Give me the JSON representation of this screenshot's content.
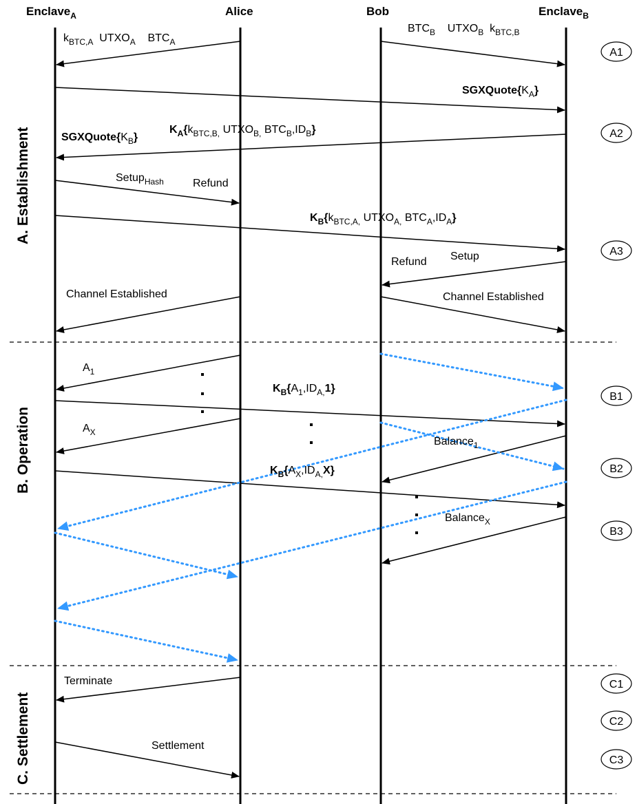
{
  "participants": [
    {
      "id": "ea",
      "name": "Enclave",
      "sub": "A"
    },
    {
      "id": "alice",
      "name": "Alice",
      "sub": ""
    },
    {
      "id": "bob",
      "name": "Bob",
      "sub": ""
    },
    {
      "id": "eb",
      "name": "Enclave",
      "sub": "B"
    }
  ],
  "sections": [
    {
      "id": "A",
      "label": "A. Establishment"
    },
    {
      "id": "B",
      "label": "B. Operation"
    },
    {
      "id": "C",
      "label": "C. Settlement"
    }
  ],
  "steps": [
    "A1",
    "A2",
    "A3",
    "B1",
    "B2",
    "B3",
    "C1",
    "C2",
    "C3"
  ],
  "messages": {
    "a1_left": [
      [
        "k",
        ""
      ],
      [
        "BTC,A",
        "sub"
      ],
      [
        "  UTXO",
        ""
      ],
      [
        "A",
        "sub"
      ],
      [
        "    BTC",
        ""
      ],
      [
        "A",
        "sub"
      ]
    ],
    "a1_right": [
      [
        "BTC",
        ""
      ],
      [
        "B",
        "sub"
      ],
      [
        "    UTXO",
        ""
      ],
      [
        "B",
        "sub"
      ],
      [
        "  k",
        ""
      ],
      [
        "BTC,B",
        "sub"
      ]
    ],
    "quote_a": [
      [
        "SGXQuote{",
        "b"
      ],
      [
        "K",
        ""
      ],
      [
        "A",
        "sub"
      ],
      [
        "}",
        "b"
      ]
    ],
    "quote_b": [
      [
        "SGXQuote{",
        "b"
      ],
      [
        "K",
        ""
      ],
      [
        "B",
        "sub"
      ],
      [
        "}",
        "b"
      ]
    ],
    "ka_msg": [
      [
        "K",
        "b"
      ],
      [
        "A",
        "bsub"
      ],
      [
        "{",
        "b"
      ],
      [
        "k",
        ""
      ],
      [
        "BTC,B,",
        "sub"
      ],
      [
        " UTXO",
        ""
      ],
      [
        "B,",
        "sub"
      ],
      [
        " BTC",
        ""
      ],
      [
        "B",
        "sub"
      ],
      [
        ",ID",
        ""
      ],
      [
        "B",
        "sub"
      ],
      [
        "}",
        "b"
      ]
    ],
    "setup_hash": [
      [
        "Setup",
        ""
      ],
      [
        "Hash",
        "sub"
      ]
    ],
    "refund_a": [
      [
        "Refund",
        ""
      ]
    ],
    "kb_msg": [
      [
        "K",
        "b"
      ],
      [
        "B",
        "bsub"
      ],
      [
        "{",
        "b"
      ],
      [
        "k",
        ""
      ],
      [
        "BTC,A,",
        "sub"
      ],
      [
        " UTXO",
        ""
      ],
      [
        "A,",
        "sub"
      ],
      [
        " BTC",
        ""
      ],
      [
        "A",
        "sub"
      ],
      [
        ",ID",
        ""
      ],
      [
        "A",
        "sub"
      ],
      [
        "}",
        "b"
      ]
    ],
    "refund_b": [
      [
        "Refund",
        ""
      ]
    ],
    "setup": [
      [
        "Setup",
        ""
      ]
    ],
    "ch_est_a": [
      [
        "Channel Established",
        ""
      ]
    ],
    "ch_est_b": [
      [
        "Channel Established",
        ""
      ]
    ],
    "a_1": [
      [
        "A",
        ""
      ],
      [
        "1",
        "sub"
      ]
    ],
    "kb_a1": [
      [
        "K",
        "b"
      ],
      [
        "B",
        "bsub"
      ],
      [
        "{",
        "b"
      ],
      [
        "A",
        ""
      ],
      [
        "1",
        "sub"
      ],
      [
        ",ID",
        ""
      ],
      [
        "A,",
        "sub"
      ],
      [
        "1}",
        "b"
      ]
    ],
    "a_x": [
      [
        "A",
        ""
      ],
      [
        "X",
        "sub"
      ]
    ],
    "balance_1": [
      [
        "Balance",
        ""
      ],
      [
        "1",
        "sub"
      ]
    ],
    "kb_ax": [
      [
        "K",
        "b"
      ],
      [
        "B",
        "bsub"
      ],
      [
        "{",
        "b"
      ],
      [
        "A",
        ""
      ],
      [
        "X",
        "sub"
      ],
      [
        ",ID",
        ""
      ],
      [
        "A,",
        "sub"
      ],
      [
        "X}",
        "b"
      ]
    ],
    "balance_x": [
      [
        "Balance",
        ""
      ],
      [
        "X",
        "sub"
      ]
    ],
    "terminate": [
      [
        "Terminate",
        ""
      ]
    ],
    "settlement": [
      [
        "Settlement",
        ""
      ]
    ]
  },
  "colors": {
    "line": "#000000",
    "dotted": "#3399ff",
    "divider": "#000000"
  }
}
